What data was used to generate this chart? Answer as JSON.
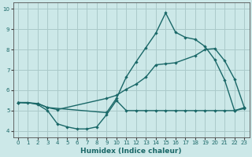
{
  "xlabel": "Humidex (Indice chaleur)",
  "bg_color": "#cce8e8",
  "grid_color": "#aacaca",
  "line_color": "#1a6868",
  "xlim": [
    -0.5,
    23.5
  ],
  "ylim": [
    3.7,
    10.3
  ],
  "xticks": [
    0,
    1,
    2,
    3,
    4,
    5,
    6,
    7,
    8,
    9,
    10,
    11,
    12,
    13,
    14,
    15,
    16,
    17,
    18,
    19,
    20,
    21,
    22,
    23
  ],
  "yticks": [
    4,
    5,
    6,
    7,
    8,
    9,
    10
  ],
  "curve1_x": [
    0,
    1,
    2,
    3,
    4,
    5,
    6,
    7,
    8,
    9,
    10,
    11,
    12,
    13,
    14,
    15,
    16,
    17,
    18,
    19,
    20,
    21,
    22,
    23
  ],
  "curve1_y": [
    5.4,
    5.4,
    5.3,
    5.0,
    4.35,
    4.2,
    4.1,
    4.1,
    4.2,
    4.8,
    5.5,
    5.0,
    5.0,
    5.0,
    5.0,
    5.0,
    5.0,
    5.0,
    5.0,
    5.0,
    5.0,
    5.0,
    5.0,
    5.1
  ],
  "curve2_x": [
    0,
    2,
    3,
    4,
    9,
    10,
    11,
    12,
    13,
    14,
    15,
    16,
    18,
    19,
    20,
    21,
    22,
    23
  ],
  "curve2_y": [
    5.4,
    5.35,
    5.15,
    5.05,
    5.6,
    5.75,
    6.05,
    6.3,
    6.65,
    7.25,
    7.3,
    7.35,
    7.7,
    8.0,
    8.05,
    7.45,
    6.55,
    5.15
  ],
  "curve3_x": [
    0,
    2,
    3,
    9,
    10,
    11,
    12,
    13,
    14,
    15,
    16,
    17,
    18,
    19,
    20,
    21,
    22,
    23
  ],
  "curve3_y": [
    5.4,
    5.35,
    5.15,
    4.9,
    5.6,
    6.65,
    7.4,
    8.1,
    8.8,
    9.8,
    8.85,
    8.6,
    8.5,
    8.15,
    7.5,
    6.5,
    5.0,
    5.15
  ]
}
